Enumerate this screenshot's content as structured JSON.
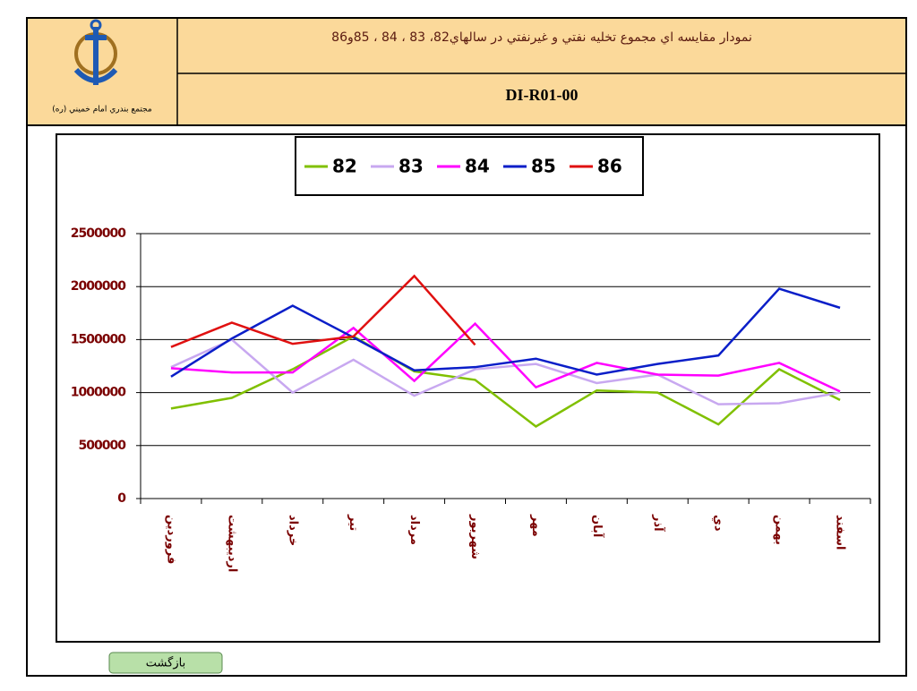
{
  "header": {
    "title": "نمودار مقايسه اي مجموع تخليه نفتي و غيرنفتي در سالهاي82، 83 ، 84 ، 85و86",
    "code": "DI-R01-00",
    "logo_caption": "مجتمع بندري امام خميني (ره)"
  },
  "button": {
    "label": "بازگشت"
  },
  "chart_data": {
    "type": "line",
    "categories": [
      "فروردين",
      "ارديبهشت",
      "خرداد",
      "تير",
      "مرداد",
      "شهريور",
      "مهر",
      "آبان",
      "آذر",
      "دي",
      "بهمن",
      "اسفند"
    ],
    "series": [
      {
        "name": "82",
        "color": "#80c000",
        "values": [
          850000,
          950000,
          1220000,
          1530000,
          1200000,
          1120000,
          680000,
          1020000,
          1000000,
          700000,
          1220000,
          930000
        ]
      },
      {
        "name": "83",
        "color": "#c8a8f0",
        "values": [
          1240000,
          1500000,
          1000000,
          1310000,
          970000,
          1220000,
          1270000,
          1090000,
          1170000,
          890000,
          900000,
          1000000
        ]
      },
      {
        "name": "84",
        "color": "#ff00ff",
        "values": [
          1230000,
          1190000,
          1190000,
          1610000,
          1110000,
          1650000,
          1050000,
          1280000,
          1170000,
          1160000,
          1280000,
          1010000
        ]
      },
      {
        "name": "85",
        "color": "#0a1ec8",
        "values": [
          1150000,
          1510000,
          1820000,
          1520000,
          1210000,
          1240000,
          1320000,
          1170000,
          1270000,
          1350000,
          1980000,
          1800000
        ]
      },
      {
        "name": "86",
        "color": "#e01010",
        "values": [
          1430000,
          1660000,
          1460000,
          1530000,
          2100000,
          1450000,
          null,
          null,
          null,
          null,
          null,
          null
        ]
      }
    ],
    "ylim": [
      0,
      2500000
    ],
    "yticks": [
      0,
      500000,
      1000000,
      1500000,
      2000000,
      2500000
    ],
    "grid": true,
    "legend": "top"
  }
}
